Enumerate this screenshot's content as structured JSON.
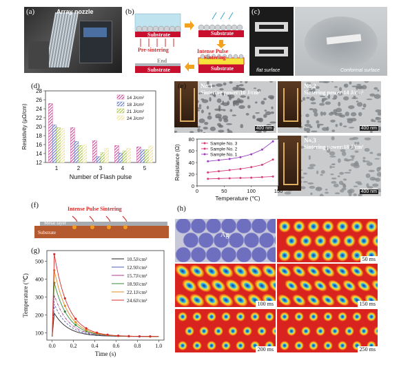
{
  "panels": {
    "a": {
      "label": "(a)",
      "caption": "Array nozzle"
    },
    "b": {
      "label": "(b)",
      "substrate": "Substrate",
      "pre_sintering": "Pre-sintering",
      "ips_line1": "Intense Pulse",
      "ips_line2": "Sintering",
      "end": "End"
    },
    "c": {
      "label": "(c)",
      "flat": "flat surface",
      "conformal": "Conformal surface"
    },
    "d": {
      "label": "(d)"
    },
    "e": {
      "label": "(e)",
      "samples": [
        {
          "id": "No.1",
          "power": "Sintering power:10 J/cm²",
          "scale": "400 nm"
        },
        {
          "id": "No.2",
          "power": "Sintering power:14 J/cm²",
          "scale": "400 nm"
        },
        {
          "id": "No.3",
          "power": "Sintering power:18 J/cm²",
          "scale": "400 nm"
        }
      ]
    },
    "f": {
      "label": "(f)",
      "ips": "Intense Pulse Sintering",
      "metal": "Metal layer",
      "substrate": "Substrate"
    },
    "g": {
      "label": "(g)"
    },
    "h": {
      "label": "(h)",
      "ag": "Ag",
      "times": [
        "50 ms",
        "100 ms",
        "150 ms",
        "200 ms",
        "250 ms"
      ]
    }
  },
  "chart_data": [
    {
      "id": "d",
      "type": "bar",
      "xlabel": "Number of Flash pulse",
      "ylabel": "Resistivity (μΩ/cm)",
      "ylim": [
        12,
        28
      ],
      "yticks": [
        12,
        14,
        16,
        18,
        20,
        22,
        24,
        26,
        28
      ],
      "categories": [
        "1",
        "2",
        "3",
        "4",
        "5"
      ],
      "legend_position": "top-right",
      "series": [
        {
          "name": "14 J/cm²",
          "color": "#c43a8f",
          "values": [
            25.2,
            19.8,
            16.9,
            15.8,
            15.5
          ]
        },
        {
          "name": "18 J/cm²",
          "color": "#5a6fc0",
          "values": [
            20.4,
            16.7,
            13.3,
            14.1,
            14.8
          ]
        },
        {
          "name": "21 J/cm²",
          "color": "#9fc13b",
          "values": [
            19.8,
            15.8,
            14.2,
            14.6,
            14.9
          ]
        },
        {
          "name": "24 J/cm²",
          "color": "#efe08a",
          "values": [
            19.6,
            15.9,
            15.2,
            15.2,
            15.7
          ]
        }
      ]
    },
    {
      "id": "e",
      "type": "line",
      "xlabel": "Temperature (℃)",
      "ylabel": "Resistance (Ω)",
      "xlim": [
        0,
        150
      ],
      "ylim": [
        0,
        80
      ],
      "xticks": [
        0,
        50,
        100,
        150
      ],
      "yticks": [
        0,
        20,
        40,
        60,
        80
      ],
      "legend_position": "top-left",
      "series": [
        {
          "name": "Sample No. 3",
          "color": "#d63a7c",
          "x": [
            20,
            40,
            60,
            80,
            100,
            120,
            140
          ],
          "y": [
            12,
            12.5,
            13,
            13.5,
            14,
            15,
            16
          ]
        },
        {
          "name": "Sample No. 2",
          "color": "#d63a7c",
          "x": [
            20,
            40,
            60,
            80,
            100,
            120,
            140
          ],
          "y": [
            23,
            25,
            27,
            29,
            32,
            36,
            45
          ]
        },
        {
          "name": "Sample No. 1",
          "color": "#9b3fc0",
          "x": [
            20,
            40,
            60,
            80,
            100,
            120,
            140
          ],
          "y": [
            42,
            44,
            46,
            49,
            54,
            62,
            76
          ]
        }
      ]
    },
    {
      "id": "g",
      "type": "line",
      "xlabel": "Time (s)",
      "ylabel": "Temperature (℃)",
      "xlim": [
        -0.05,
        1.05
      ],
      "ylim": [
        60,
        560
      ],
      "xticks": [
        0.0,
        0.2,
        0.4,
        0.6,
        0.8,
        1.0
      ],
      "yticks": [
        100,
        200,
        300,
        400,
        500
      ],
      "legend_position": "top-right",
      "series": [
        {
          "name": "10.5J/cm²",
          "color": "#222222",
          "peak": 210
        },
        {
          "name": "12.9J/cm²",
          "color": "#4a5fb0",
          "peak": 260
        },
        {
          "name": "15.7J/cm²",
          "color": "#b0368c",
          "peak": 310
        },
        {
          "name": "18.9J/cm²",
          "color": "#2f8a3a",
          "peak": 380
        },
        {
          "name": "22.1J/cm²",
          "color": "#e08a1e",
          "peak": 450
        },
        {
          "name": "24.6J/cm²",
          "color": "#d62a2a",
          "peak": 540
        }
      ]
    }
  ]
}
